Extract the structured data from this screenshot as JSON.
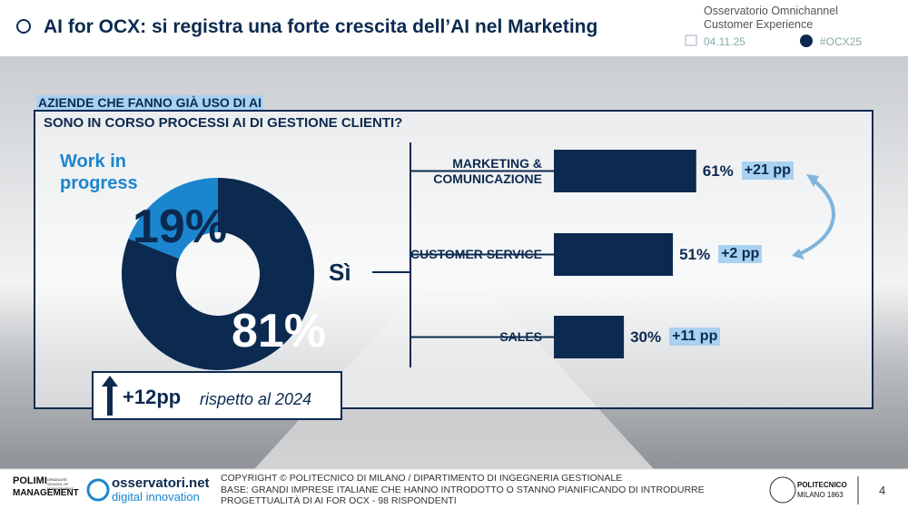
{
  "header": {
    "title": "AI for OCX: si registra una forte crescita dell’AI nel Marketing",
    "observatory": "Osservatorio Omnichannel Customer Experience",
    "date": "04.11.25",
    "hashtag": "#OCX25"
  },
  "section": {
    "tag": "AZIENDE CHE FANNO GIÀ USO DI AI",
    "question": "SONO IN CORSO PROCESSI AI DI GESTIONE CLIENTI?"
  },
  "chart_data": [
    {
      "type": "pie",
      "donut": true,
      "categories": [
        "Work in progress",
        "Sì"
      ],
      "values": [
        19,
        81
      ],
      "value_labels": [
        "19%",
        "81%"
      ],
      "colors": [
        "#1b86cf",
        "#0c2a50"
      ],
      "change_label": "+12pp",
      "change_text": "rispetto al 2024"
    },
    {
      "type": "bar",
      "orientation": "horizontal",
      "categories": [
        "MARKETING & COMUNICAZIONE",
        "CUSTOMER SERVICE",
        "SALES"
      ],
      "values": [
        61,
        51,
        30
      ],
      "value_labels": [
        "61%",
        "51%",
        "30%"
      ],
      "change_labels": [
        "+21 pp",
        "+2 pp",
        "+11 pp"
      ],
      "color": "#0c2a50"
    }
  ],
  "footer": {
    "polimi": "POLIMI",
    "polimi_sub": "GRADUATE SCHOOL OF MANAGEMENT",
    "management": "MANAGEMENT",
    "brand": "osservatori.net",
    "brand_sub": "digital innovation",
    "copyright": "COPYRIGHT © POLITECNICO DI MILANO / DIPARTIMENTO DI INGEGNERIA GESTIONALE",
    "base": "BASE: GRANDI IMPRESE ITALIANE CHE HANNO INTRODOTTO O STANNO PIANIFICANDO DI INTRODURRE PROGETTUALITÀ DI AI FOR OCX - 98 RISPONDENTI",
    "politecnico": "POLITECNICO",
    "milano": "MILANO 1863",
    "page": "4"
  }
}
